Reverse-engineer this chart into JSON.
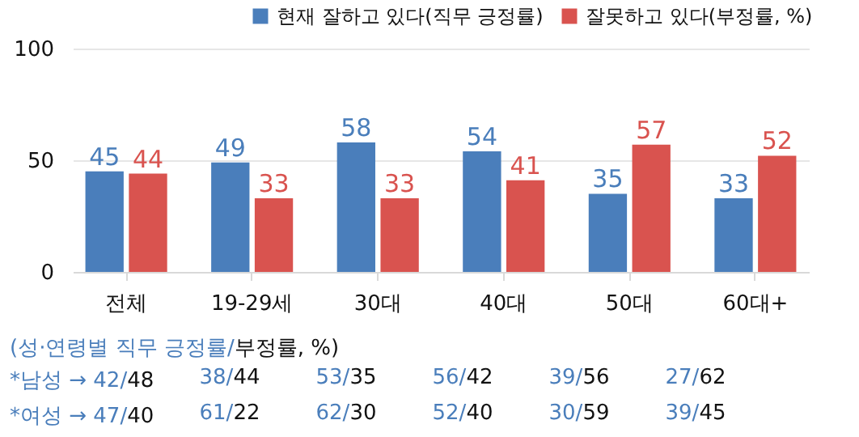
{
  "chart_data": {
    "type": "bar",
    "categories": [
      "전체",
      "19-29세",
      "30대",
      "40대",
      "50대",
      "60대+"
    ],
    "series": [
      {
        "name": "현재 잘하고 있다(직무 긍정률)",
        "color": "#4a7ebb",
        "values": [
          45,
          49,
          58,
          54,
          35,
          33
        ]
      },
      {
        "name": "잘못하고 있다(부정률, %)",
        "color": "#d9534f",
        "values": [
          44,
          33,
          33,
          41,
          57,
          52
        ]
      }
    ],
    "ylim": [
      0,
      100
    ],
    "yticks": [
      0,
      50,
      100
    ],
    "grid": "y",
    "legend": "top right",
    "data_labels": true,
    "annotations": [
      "(성·연령별 직무 긍정률/부정률, %)",
      "*남성 → 42/48",
      "38/44",
      "53/35",
      "56/42",
      "39/56",
      "27/62",
      "*여성 → 47/40",
      "61/22",
      "62/30",
      "52/40",
      "30/59",
      "39/45"
    ]
  }
}
